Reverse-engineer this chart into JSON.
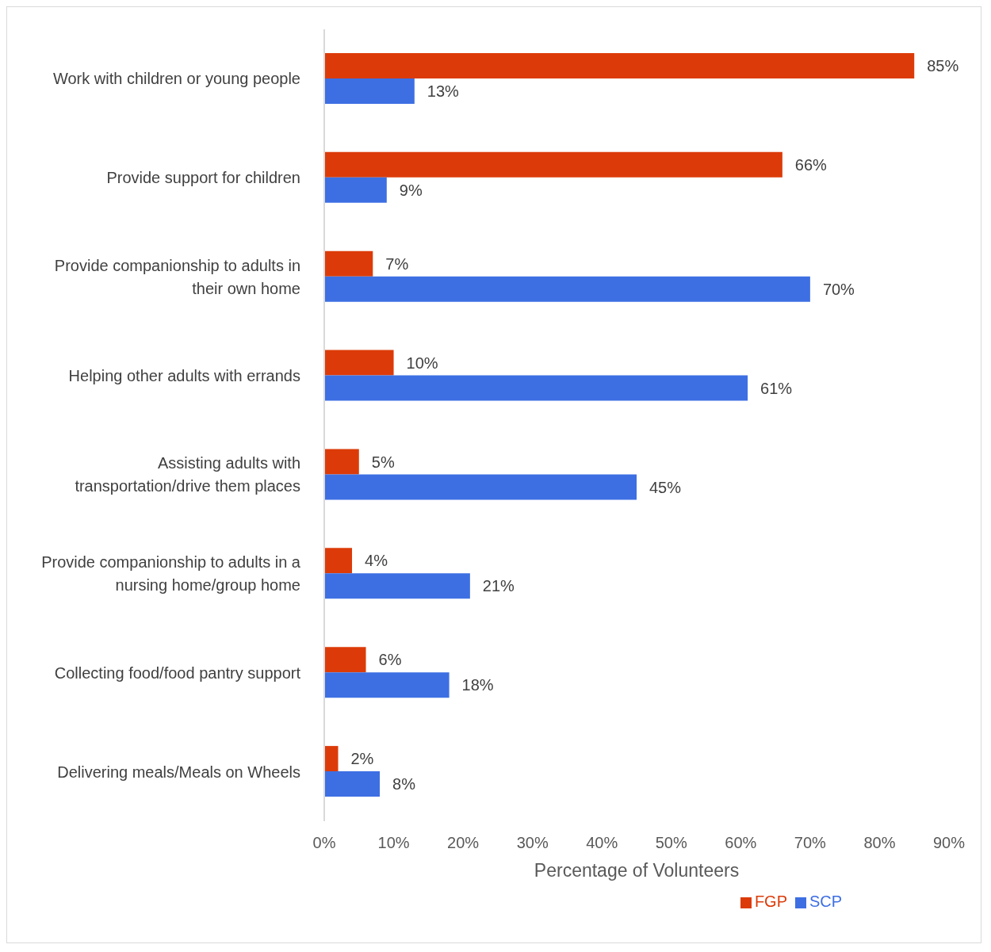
{
  "chart_data": {
    "type": "bar",
    "orientation": "horizontal",
    "xlabel": "Percentage of Volunteers",
    "categories": [
      "Work with children or young people",
      "Provide support for children",
      "Provide companionship to adults in their own home",
      "Helping other adults with errands",
      "Assisting adults with transportation/drive them places",
      "Provide companionship to adults in a nursing home/group home",
      "Collecting food/food pantry support",
      "Delivering meals/Meals on Wheels"
    ],
    "series": [
      {
        "name": "FGP",
        "color": "#dc3b09",
        "values": [
          85,
          66,
          7,
          10,
          5,
          4,
          6,
          2
        ],
        "value_labels": [
          "85%",
          "66%",
          "7%",
          "10%",
          "5%",
          "4%",
          "6%",
          "2%"
        ]
      },
      {
        "name": "SCP",
        "color": "#3d6fe3",
        "values": [
          13,
          9,
          70,
          61,
          45,
          21,
          18,
          8
        ],
        "value_labels": [
          "13%",
          "9%",
          "70%",
          "61%",
          "45%",
          "21%",
          "18%",
          "8%"
        ]
      }
    ],
    "xlim": [
      0,
      90
    ],
    "xticks": [
      {
        "value": 0,
        "label": "0%"
      },
      {
        "value": 10,
        "label": "10%"
      },
      {
        "value": 20,
        "label": "20%"
      },
      {
        "value": 30,
        "label": "30%"
      },
      {
        "value": 40,
        "label": "40%"
      },
      {
        "value": 50,
        "label": "50%"
      },
      {
        "value": 60,
        "label": "60%"
      },
      {
        "value": 70,
        "label": "70%"
      },
      {
        "value": 80,
        "label": "80%"
      },
      {
        "value": 90,
        "label": "90%"
      }
    ],
    "grid": false,
    "legend": "bottom"
  }
}
